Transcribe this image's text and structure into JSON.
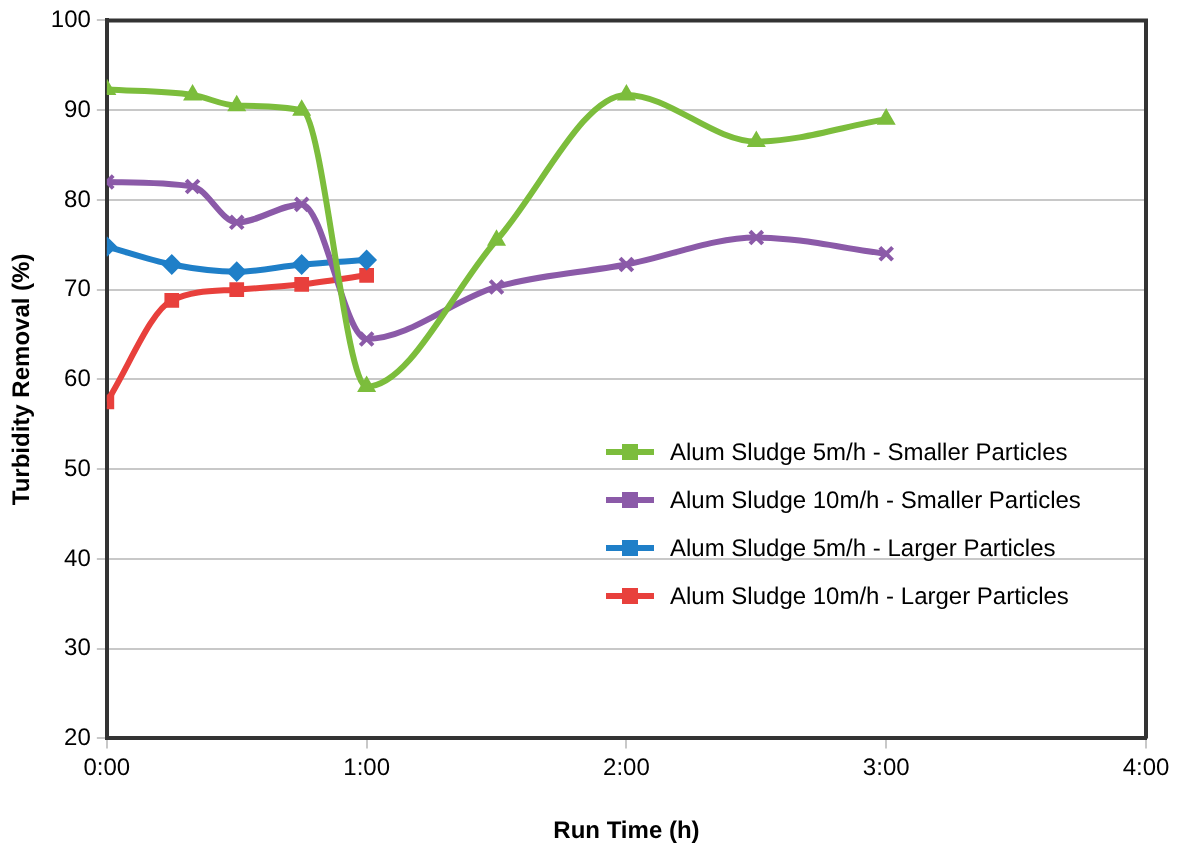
{
  "chart_data": {
    "type": "line",
    "xlabel": "Run Time (h)",
    "ylabel": "Turbidity Removal (%)",
    "xlim": [
      0,
      4
    ],
    "xticks": [
      {
        "value": 0,
        "label": "0:00"
      },
      {
        "value": 1,
        "label": "1:00"
      },
      {
        "value": 2,
        "label": "2:00"
      },
      {
        "value": 3,
        "label": "3:00"
      },
      {
        "value": 4,
        "label": "4:00"
      }
    ],
    "ylim": [
      20,
      100
    ],
    "yticks": [
      20,
      30,
      40,
      50,
      60,
      70,
      80,
      90,
      100
    ],
    "grid": "y",
    "legend": "bottom right",
    "series": [
      {
        "name": "Alum Sludge 5m/h - Smaller Particles",
        "color": "#7cbd3c",
        "marker": "triangle",
        "x": [
          0,
          0.33,
          0.5,
          0.75,
          1,
          1.5,
          2,
          2.5,
          3
        ],
        "values": [
          92.3,
          91.7,
          90.5,
          90,
          59.2,
          75.5,
          91.7,
          86.5,
          89
        ]
      },
      {
        "name": "Alum Sludge 10m/h - Smaller Particles",
        "color": "#8b5aa8",
        "marker": "cross",
        "x": [
          0,
          0.33,
          0.5,
          0.75,
          1,
          1.5,
          2,
          2.5,
          3
        ],
        "values": [
          82,
          81.5,
          77.5,
          79.5,
          64.5,
          70.3,
          72.8,
          75.8,
          74
        ]
      },
      {
        "name": "Alum Sludge 5m/h - Larger Particles",
        "color": "#1f7fc8",
        "marker": "diamond",
        "x": [
          0,
          0.25,
          0.5,
          0.75,
          1
        ],
        "values": [
          74.8,
          72.8,
          72,
          72.8,
          73.3
        ]
      },
      {
        "name": "Alum Sludge 10m/h - Larger Particles",
        "color": "#e8403c",
        "marker": "square",
        "x": [
          0,
          0.25,
          0.5,
          0.75,
          1
        ],
        "values": [
          57.5,
          68.8,
          70,
          70.6,
          71.6
        ]
      }
    ]
  }
}
